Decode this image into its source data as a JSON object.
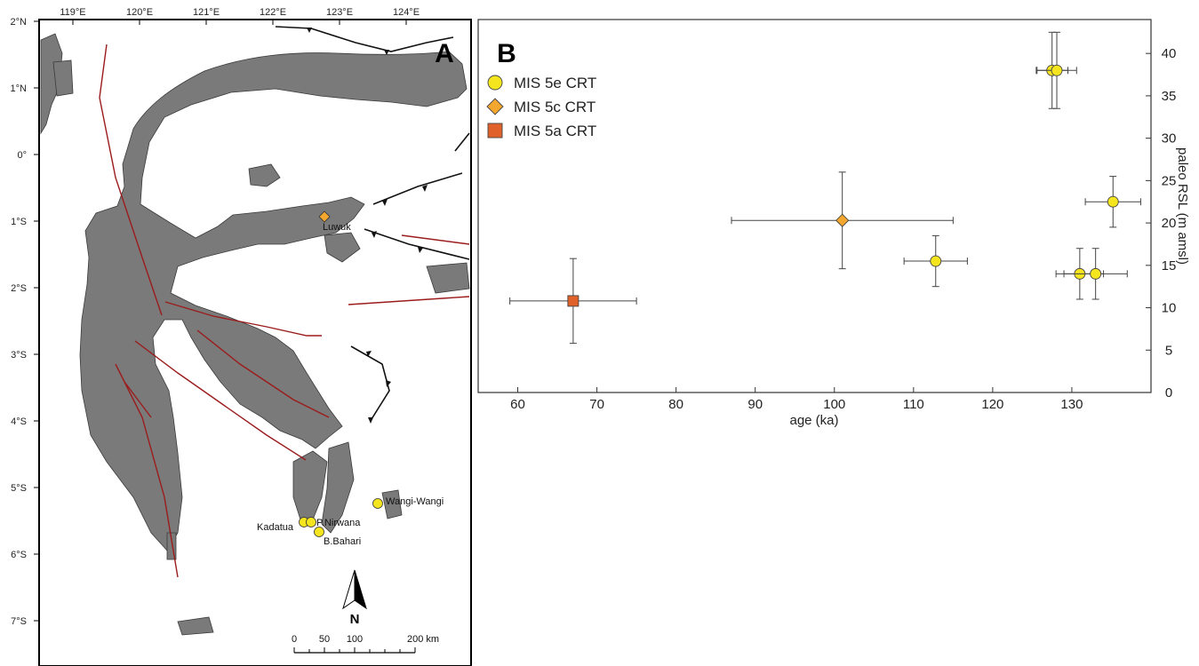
{
  "map": {
    "panel_label": "A",
    "lon_ticks": [
      "119°E",
      "120°E",
      "121°E",
      "122°E",
      "123°E",
      "124°E"
    ],
    "lat_ticks": [
      "2°N",
      "1°N",
      "0°",
      "1°S",
      "2°S",
      "3°S",
      "4°S",
      "5°S",
      "6°S",
      "7°S"
    ],
    "north_label": "N",
    "scale_labels": [
      "0",
      "50",
      "100",
      "200 km"
    ],
    "sites": [
      {
        "name": "Luwuk",
        "marker": "diamond"
      },
      {
        "name": "Wangi-Wangi",
        "marker": "circle"
      },
      {
        "name": "Kadatua",
        "marker": "circle"
      },
      {
        "name": "P.Nirwana",
        "marker": "circle"
      },
      {
        "name": "B.Bahari",
        "marker": "circle"
      }
    ],
    "colors": {
      "land": "#7a7a7a",
      "fault": "#9b1c1c",
      "subduction": "#111111"
    }
  },
  "chart_data": {
    "type": "scatter",
    "panel_label": "B",
    "xlabel": "age (ka)",
    "ylabel": "paleo RSL (m amsl)",
    "xlim": [
      55,
      140
    ],
    "ylim": [
      0,
      44
    ],
    "xticks": [
      60,
      70,
      80,
      90,
      100,
      110,
      120,
      130
    ],
    "yticks": [
      0,
      5,
      10,
      15,
      20,
      25,
      30,
      35,
      40
    ],
    "grid": false,
    "legend_position": "top-left",
    "series": [
      {
        "name": "MIS 5e CRT",
        "marker": "circle",
        "color": "#f5e51f",
        "points": [
          {
            "x": 127.5,
            "y": 38,
            "xerr": 2,
            "yerr": 4.5
          },
          {
            "x": 128.1,
            "y": 38,
            "xerr": 2.5,
            "yerr": 4.5
          },
          {
            "x": 135.2,
            "y": 22.5,
            "xerr": 3.5,
            "yerr": 3
          },
          {
            "x": 112.8,
            "y": 15.5,
            "xerr": 4,
            "yerr": 3
          },
          {
            "x": 131.0,
            "y": 14,
            "xerr": 3,
            "yerr": 3
          },
          {
            "x": 133.0,
            "y": 14,
            "xerr": 4,
            "yerr": 3
          }
        ]
      },
      {
        "name": "MIS 5c CRT",
        "marker": "diamond",
        "color": "#f4a72e",
        "points": [
          {
            "x": 101,
            "y": 20.3,
            "xerr": 14,
            "yerr": 5.7
          }
        ]
      },
      {
        "name": "MIS 5a CRT",
        "marker": "square",
        "color": "#e0622a",
        "points": [
          {
            "x": 67,
            "y": 10.8,
            "xerr": 8,
            "yerr": 5
          }
        ]
      }
    ]
  }
}
